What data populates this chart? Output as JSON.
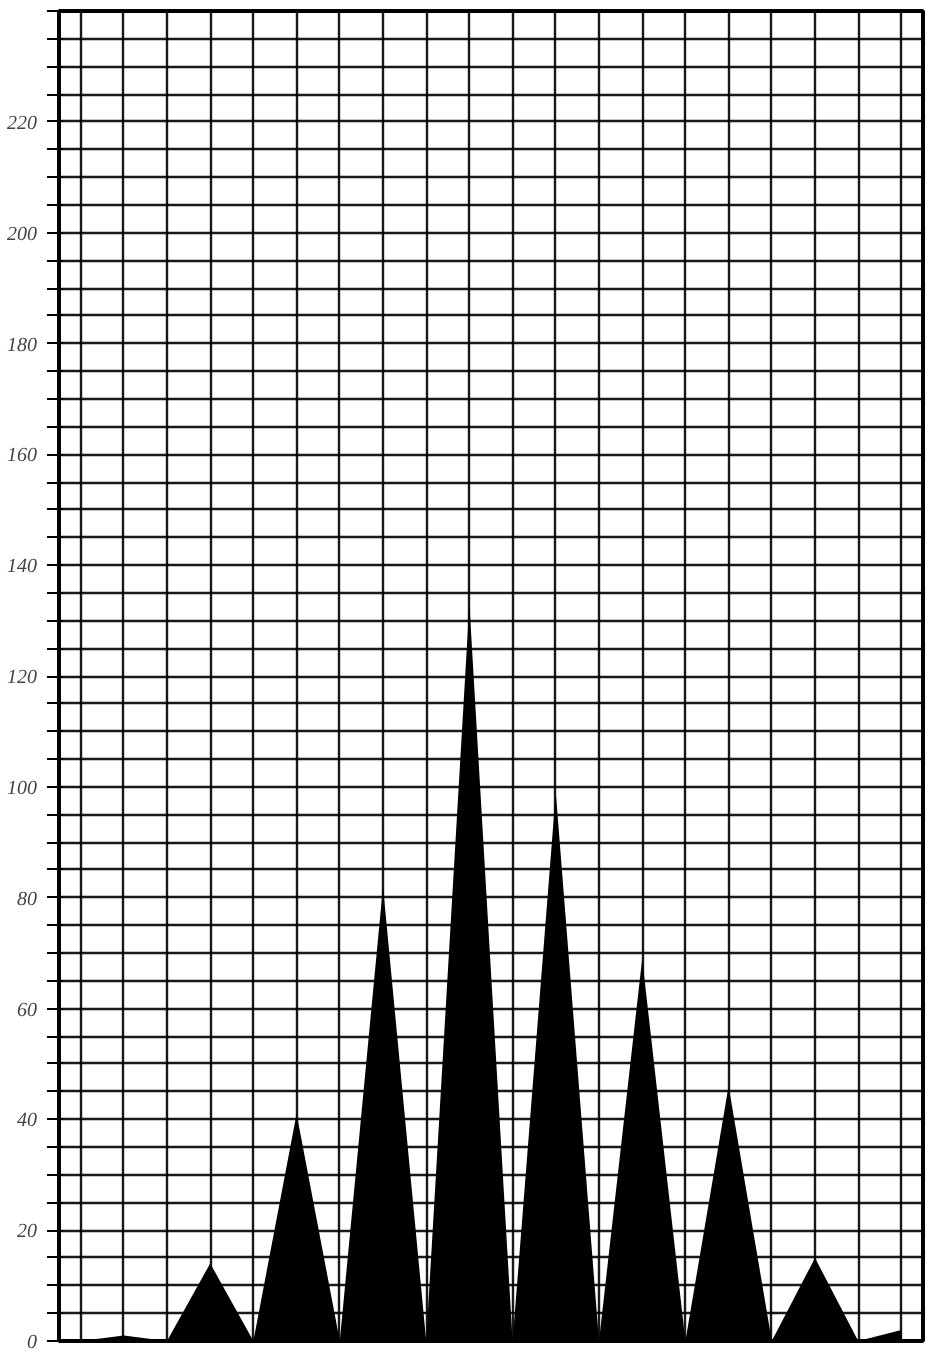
{
  "chart_data": {
    "type": "area",
    "categories": [
      null,
      null,
      null,
      null,
      null,
      null,
      null,
      null,
      null,
      null,
      null,
      null,
      null,
      null,
      null,
      null,
      null,
      null,
      null,
      null
    ],
    "series": [
      {
        "color": "#000000",
        "values": [
          0,
          1,
          0,
          14,
          0,
          41,
          0,
          82,
          0,
          133,
          0,
          99,
          0,
          69,
          0,
          46,
          0,
          15,
          0,
          2
        ]
      }
    ],
    "ylim": [
      0,
      240
    ],
    "yticks": [
      0,
      {
        "value": 5,
        "label": null
      },
      {
        "value": 10,
        "label": null
      },
      {
        "value": 15,
        "label": null
      },
      20,
      {
        "value": 25,
        "label": null
      },
      {
        "value": 30,
        "label": null
      },
      {
        "value": 35,
        "label": null
      },
      40,
      {
        "value": 45,
        "label": null
      },
      {
        "value": 50,
        "label": null
      },
      {
        "value": 55,
        "label": null
      },
      60,
      {
        "value": 65,
        "label": null
      },
      {
        "value": 70,
        "label": null
      },
      {
        "value": 75,
        "label": null
      },
      80,
      {
        "value": 85,
        "label": null
      },
      {
        "value": 90,
        "label": null
      },
      {
        "value": 95,
        "label": null
      },
      100,
      {
        "value": 105,
        "label": null
      },
      {
        "value": 110,
        "label": null
      },
      {
        "value": 115,
        "label": null
      },
      120,
      {
        "value": 125,
        "label": null
      },
      {
        "value": 130,
        "label": null
      },
      {
        "value": 135,
        "label": null
      },
      140,
      {
        "value": 145,
        "label": null
      },
      {
        "value": 150,
        "label": null
      },
      {
        "value": 155,
        "label": null
      },
      160,
      {
        "value": 165,
        "label": null
      },
      {
        "value": 170,
        "label": null
      },
      {
        "value": 175,
        "label": null
      },
      180,
      {
        "value": 185,
        "label": null
      },
      {
        "value": 190,
        "label": null
      },
      {
        "value": 195,
        "label": null
      },
      200,
      {
        "value": 205,
        "label": null
      },
      {
        "value": 210,
        "label": null
      },
      {
        "value": 215,
        "label": null
      },
      220,
      {
        "value": 225,
        "label": null
      },
      {
        "value": 230,
        "label": null
      },
      {
        "value": 235,
        "label": null
      },
      {
        "value": 240,
        "label": null
      }
    ],
    "grid": true,
    "tick_labels": "y"
  }
}
